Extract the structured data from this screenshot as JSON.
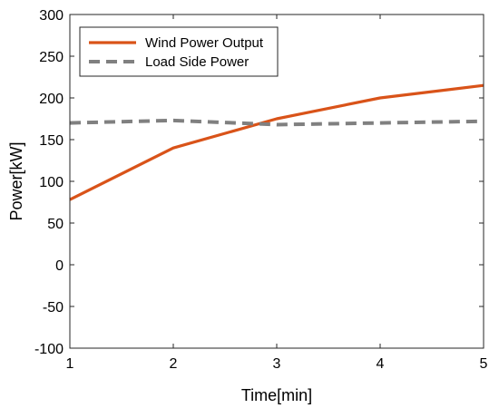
{
  "chart_data": {
    "type": "line",
    "title": "",
    "xlabel": "Time[min]",
    "ylabel": "Power[kW]",
    "xlim": [
      1,
      5
    ],
    "ylim": [
      -100,
      300
    ],
    "xticks": [
      1,
      2,
      3,
      4,
      5
    ],
    "yticks": [
      -100,
      -50,
      0,
      50,
      100,
      150,
      200,
      250,
      300
    ],
    "grid": false,
    "legend_position": "top-left",
    "series": [
      {
        "name": "Wind Power Output",
        "color": "#D95319",
        "style": "solid",
        "x": [
          1,
          2,
          3,
          4,
          5
        ],
        "y": [
          78,
          140,
          175,
          200,
          215
        ]
      },
      {
        "name": "Load Side Power",
        "color": "#808080",
        "style": "dashed",
        "x": [
          1,
          2,
          3,
          4,
          5
        ],
        "y": [
          170,
          173,
          168,
          170,
          172
        ]
      }
    ]
  }
}
